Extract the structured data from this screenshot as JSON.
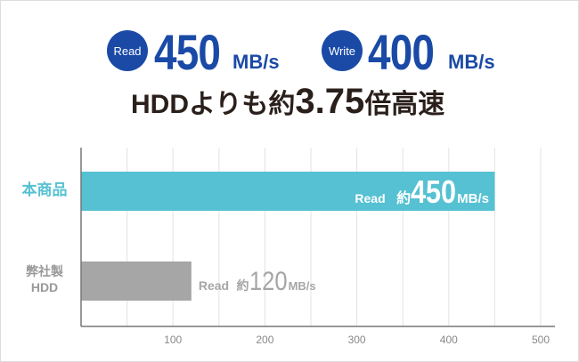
{
  "header": {
    "read_badge": "Read",
    "read_value": "450",
    "read_unit": "MB/s",
    "write_badge": "Write",
    "write_value": "400",
    "write_unit": "MB/s",
    "headline_prefix": "HDDよりも約",
    "headline_number": "3.75",
    "headline_suffix": "倍高速"
  },
  "colors": {
    "brand": "#1a4aa6",
    "product_bar": "#55c1d2",
    "hdd_bar": "#a6a6a6"
  },
  "chart_data": {
    "type": "bar",
    "orientation": "horizontal",
    "categories": [
      "本商品",
      "弊社製 HDD"
    ],
    "category_lines": [
      [
        "本商品"
      ],
      [
        "弊社製",
        "HDD"
      ]
    ],
    "values": [
      450,
      120
    ],
    "data_labels": [
      {
        "prefix": "Read",
        "approx": "約",
        "value": "450",
        "unit": "MB/s"
      },
      {
        "prefix": "Read",
        "approx": "約",
        "value": "120",
        "unit": "MB/s"
      }
    ],
    "xlim": [
      0,
      500
    ],
    "xticks": [
      100,
      200,
      300,
      400,
      500
    ],
    "grid_step": 50,
    "grid": true,
    "title": "",
    "xlabel": "",
    "ylabel": ""
  }
}
